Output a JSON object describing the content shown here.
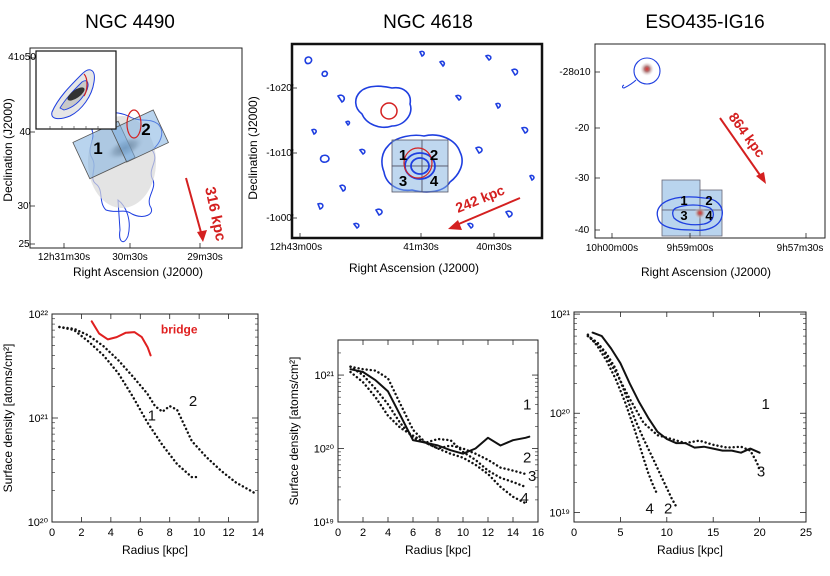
{
  "titles": [
    "NGC 4490",
    "NGC 4618",
    "ESO435-IG16"
  ],
  "maps": [
    {
      "xlabel": "Right Ascension (J2000)",
      "ylabel": "Declination (J2000)",
      "xticks": [
        "12h31m30s",
        "30m30s",
        "29m30s"
      ],
      "yticks": [
        "41o50",
        "40",
        "30'",
        "25"
      ],
      "arrow_label": "316 kpc",
      "boxes": [
        "1",
        "2"
      ],
      "inset": true
    },
    {
      "xlabel": "Right Ascension (J2000)",
      "ylabel": "Declination (J2000)",
      "xticks": [
        "12h43m00s",
        "41m30s",
        "40m30s"
      ],
      "yticks": [
        "-1o20'",
        "-1o10'",
        "-1o00'"
      ],
      "arrow_label": "242 kpc",
      "boxes": [
        "1",
        "2",
        "3",
        "4"
      ]
    },
    {
      "xlabel": "Right Ascension (J2000)",
      "ylabel": "Declination (J2000)",
      "xticks": [
        "10h00m00s",
        "9h59m00s",
        "9h57m30s"
      ],
      "yticks": [
        "-28o10",
        "-20",
        "-30",
        "-40"
      ],
      "arrow_label": "864 kpc",
      "boxes": [
        "1",
        "2",
        "3",
        "4"
      ]
    }
  ],
  "colors": {
    "contour": "#1f3fe0",
    "highlight": "#d42020",
    "box": "#7fb0e0"
  },
  "chart_data": [
    {
      "type": "line",
      "title": "",
      "xlabel": "Radius [kpc]",
      "ylabel": "Surface density [atoms/cm²]",
      "xlim": [
        0,
        14
      ],
      "ylim": [
        1e+20,
        1e+22
      ],
      "yscale": "log",
      "xticks": [
        "0",
        "2",
        "4",
        "6",
        "8",
        "10",
        "12",
        "14"
      ],
      "yticks": [
        "10²⁰",
        "10²¹",
        "10²²"
      ],
      "series": [
        {
          "name": "bridge",
          "style": "solid",
          "color": "#e02020",
          "x": [
            2.7,
            3.2,
            3.8,
            4.4,
            5.0,
            5.6,
            6.1,
            6.5,
            6.7
          ],
          "y": [
            8.5e+21,
            6.5e+21,
            5.7e+21,
            6e+21,
            6.6e+21,
            6.7e+21,
            6e+21,
            4.8e+21,
            4e+21
          ]
        },
        {
          "name": "1",
          "style": "dotted",
          "color": "#111111",
          "x": [
            0.5,
            1.5,
            2.5,
            3.5,
            4.5,
            5.5,
            6.5,
            7.5,
            8.5,
            9.5,
            10.0
          ],
          "y": [
            7.5e+21,
            7e+21,
            5.4e+21,
            4e+21,
            2.7e+21,
            1.6e+21,
            9e+20,
            5.5e+20,
            3.6e+20,
            2.7e+20,
            2.7e+20
          ]
        },
        {
          "name": "2",
          "style": "dotted",
          "color": "#111111",
          "x": [
            0.5,
            1.5,
            2.5,
            3.5,
            4.5,
            5.5,
            6.5,
            7.0,
            7.5,
            8.0,
            8.5,
            9.0,
            9.5,
            10.5,
            11.5,
            12.5,
            13.5,
            13.9
          ],
          "y": [
            7.5e+21,
            7.2e+21,
            6.2e+21,
            4.9e+21,
            3.6e+21,
            2.5e+21,
            1.7e+21,
            1.3e+21,
            1.15e+21,
            1.3e+21,
            1.2e+21,
            8.5e+20,
            6e+20,
            4.2e+20,
            3.1e+20,
            2.4e+20,
            2e+20,
            1.85e+20
          ]
        }
      ]
    },
    {
      "type": "line",
      "title": "",
      "xlabel": "Radius [kpc]",
      "ylabel": "Surface density [atoms/cm²]",
      "xlim": [
        0,
        16
      ],
      "ylim": [
        1e+19,
        3e+21
      ],
      "yscale": "log",
      "xticks": [
        "0",
        "2",
        "4",
        "6",
        "8",
        "10",
        "12",
        "14",
        "16"
      ],
      "yticks": [
        "10¹⁹",
        "10²⁰",
        "10²¹"
      ],
      "series": [
        {
          "name": "1",
          "style": "solid",
          "color": "#111111",
          "x": [
            1.0,
            2.0,
            3.0,
            4.0,
            5.0,
            6.0,
            7.0,
            8.0,
            9.0,
            10.0,
            11.0,
            12.0,
            13.0,
            14.0,
            15.0,
            15.3
          ],
          "y": [
            1.2e+21,
            1.1e+21,
            8.5e+20,
            6e+20,
            2.8e+20,
            1.3e+20,
            1.2e+20,
            1.1e+20,
            9.5e+19,
            8.5e+19,
            1e+20,
            1.4e+20,
            1.1e+20,
            1.3e+20,
            1.4e+20,
            1.45e+20
          ]
        },
        {
          "name": "2",
          "style": "dotted",
          "color": "#111111",
          "x": [
            1.0,
            2.0,
            3.0,
            4.0,
            5.0,
            6.0,
            7.0,
            8.0,
            9.0,
            10.0,
            11.0,
            12.0,
            13.0,
            14.0,
            15.0
          ],
          "y": [
            1.3e+21,
            1.2e+21,
            1.15e+21,
            9e+20,
            4e+20,
            1.8e+20,
            1.2e+20,
            1e+20,
            1.1e+20,
            1e+20,
            8.5e+19,
            7e+19,
            5.5e+19,
            5e+19,
            4.5e+19
          ]
        },
        {
          "name": "3",
          "style": "dotted",
          "color": "#111111",
          "x": [
            1.0,
            2.0,
            3.0,
            4.0,
            5.0,
            6.0,
            7.0,
            8.0,
            9.0,
            10.0,
            11.0,
            12.0,
            13.0,
            14.0,
            15.0
          ],
          "y": [
            1.3e+21,
            1e+21,
            6.5e+20,
            4e+20,
            2.2e+20,
            1.4e+20,
            1.2e+20,
            1.35e+20,
            1.3e+20,
            9e+19,
            7e+19,
            5e+19,
            4e+19,
            3.5e+19,
            3e+19
          ]
        },
        {
          "name": "4",
          "style": "dotted",
          "color": "#111111",
          "x": [
            1.0,
            2.0,
            3.0,
            4.0,
            5.0,
            6.0,
            7.0,
            8.0,
            9.0,
            10.0,
            11.0,
            12.0,
            13.0,
            14.0,
            15.0
          ],
          "y": [
            1.1e+21,
            8e+20,
            5e+20,
            2.8e+20,
            1.9e+20,
            1.5e+20,
            1.2e+20,
            1e+20,
            8.5e+19,
            7.5e+19,
            6e+19,
            4.5e+19,
            3e+19,
            2.2e+19,
            1.8e+19
          ]
        }
      ]
    },
    {
      "type": "line",
      "title": "",
      "xlabel": "Radius [kpc]",
      "ylabel": "",
      "xlim": [
        0,
        25
      ],
      "ylim": [
        8e+18,
        1.05e+21
      ],
      "yscale": "log",
      "xticks": [
        "0",
        "5",
        "10",
        "15",
        "20",
        "25"
      ],
      "yticks": [
        "10¹⁹",
        "10²⁰",
        "10²¹"
      ],
      "series": [
        {
          "name": "1",
          "style": "solid",
          "color": "#111111",
          "x": [
            2.0,
            3.0,
            4.0,
            5.0,
            6.0,
            7.0,
            8.0,
            9.0,
            10.0,
            11.0,
            12.0,
            13.0,
            14.0,
            15.0,
            16.0,
            17.0,
            18.0,
            19.0,
            20.0
          ],
          "y": [
            6.5e+20,
            6e+20,
            4.5e+20,
            3.2e+20,
            2e+20,
            1.3e+20,
            9e+19,
            6.5e+19,
            5.5e+19,
            5e+19,
            5e+19,
            4.5e+19,
            4.6e+19,
            4.4e+19,
            4.2e+19,
            4.2e+19,
            4e+19,
            4.4e+19,
            4e+19
          ]
        },
        {
          "name": "2",
          "style": "dotted",
          "color": "#111111",
          "x": [
            1.5,
            2.5,
            3.5,
            4.5,
            5.5,
            6.5,
            7.5,
            8.5,
            9.5,
            10.5,
            11.0
          ],
          "y": [
            6e+20,
            5.2e+20,
            4e+20,
            2.8e+20,
            1.6e+20,
            9e+19,
            5.5e+19,
            3.5e+19,
            2.2e+19,
            1.4e+19,
            1.15e+19
          ]
        },
        {
          "name": "3",
          "style": "dotted",
          "color": "#111111",
          "x": [
            1.5,
            3.0,
            4.5,
            6.0,
            7.5,
            9.0,
            10.5,
            12.0,
            13.5,
            15.0,
            16.5,
            18.0,
            19.0,
            19.7,
            20.0
          ],
          "y": [
            6e+20,
            4.5e+20,
            2.6e+20,
            1.4e+20,
            8e+19,
            6e+19,
            5.5e+19,
            5e+19,
            5.3e+19,
            4.8e+19,
            4.5e+19,
            4.6e+19,
            4.2e+19,
            3.2e+19,
            2.7e+19
          ]
        },
        {
          "name": "4",
          "style": "dotted",
          "color": "#111111",
          "x": [
            1.5,
            2.5,
            3.5,
            4.5,
            5.5,
            6.5,
            7.5,
            8.0,
            8.5,
            9.0
          ],
          "y": [
            6.2e+20,
            4.8e+20,
            3.4e+20,
            2.2e+20,
            1.3e+20,
            7e+19,
            3.5e+19,
            2.5e+19,
            1.9e+19,
            1.5e+19
          ]
        }
      ]
    }
  ]
}
